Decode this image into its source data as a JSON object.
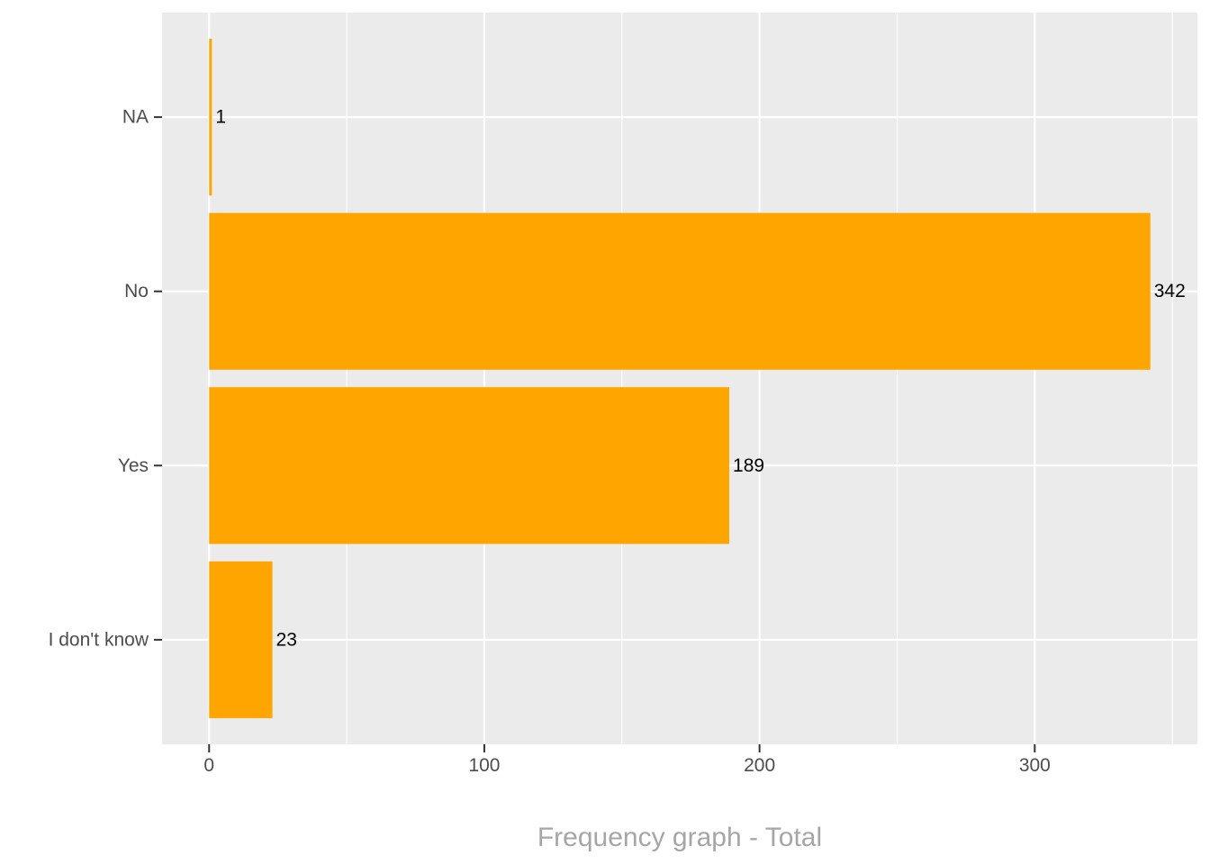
{
  "chart_data": {
    "type": "bar",
    "orientation": "horizontal",
    "categories": [
      "I don't know",
      "Yes",
      "No",
      "NA"
    ],
    "values": [
      23,
      189,
      342,
      1
    ],
    "data_labels": [
      "23",
      "189",
      "342",
      "1"
    ],
    "xlabel": "Frequency graph - Total",
    "ylabel": "",
    "xlim": [
      -17.1,
      359.1
    ],
    "x_ticks": [
      0,
      100,
      200,
      300
    ],
    "x_tick_labels": [
      "0",
      "100",
      "200",
      "300"
    ],
    "grid": true,
    "legend": "none",
    "colors": {
      "bar": "#FFA500",
      "panel": "#EBEBEB",
      "grid": "#FFFFFF",
      "tick_text": "#4D4D4D",
      "axis_title": "#A6A6A6",
      "data_label": "#000000"
    }
  }
}
